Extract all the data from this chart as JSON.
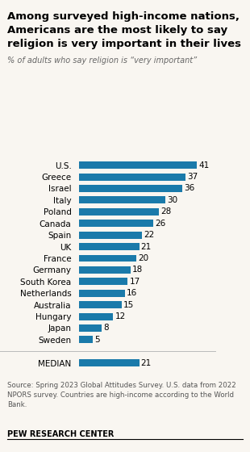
{
  "title_line1": "Among surveyed high-income nations,",
  "title_line2": "Americans are the most likely to say",
  "title_line3": "religion is very important in their lives",
  "subtitle": "% of adults who say religion is “very important”",
  "categories": [
    "U.S.",
    "Greece",
    "Israel",
    "Italy",
    "Poland",
    "Canada",
    "Spain",
    "UK",
    "France",
    "Germany",
    "South Korea",
    "Netherlands",
    "Australia",
    "Hungary",
    "Japan",
    "Sweden"
  ],
  "values": [
    41,
    37,
    36,
    30,
    28,
    26,
    22,
    21,
    20,
    18,
    17,
    16,
    15,
    12,
    8,
    5
  ],
  "median_label": "MEDIAN",
  "median_value": 21,
  "bar_color": "#1a7aaa",
  "bg_color": "#f9f6f1",
  "source_text": "Source: Spring 2023 Global Attitudes Survey. U.S. data from 2022\nNPORS survey. Countries are high-income according to the World\nBank.",
  "credit": "PEW RESEARCH CENTER",
  "title_fontsize": 9.5,
  "subtitle_fontsize": 7.0,
  "label_fontsize": 7.5,
  "value_fontsize": 7.5,
  "source_fontsize": 6.2,
  "credit_fontsize": 7.0
}
